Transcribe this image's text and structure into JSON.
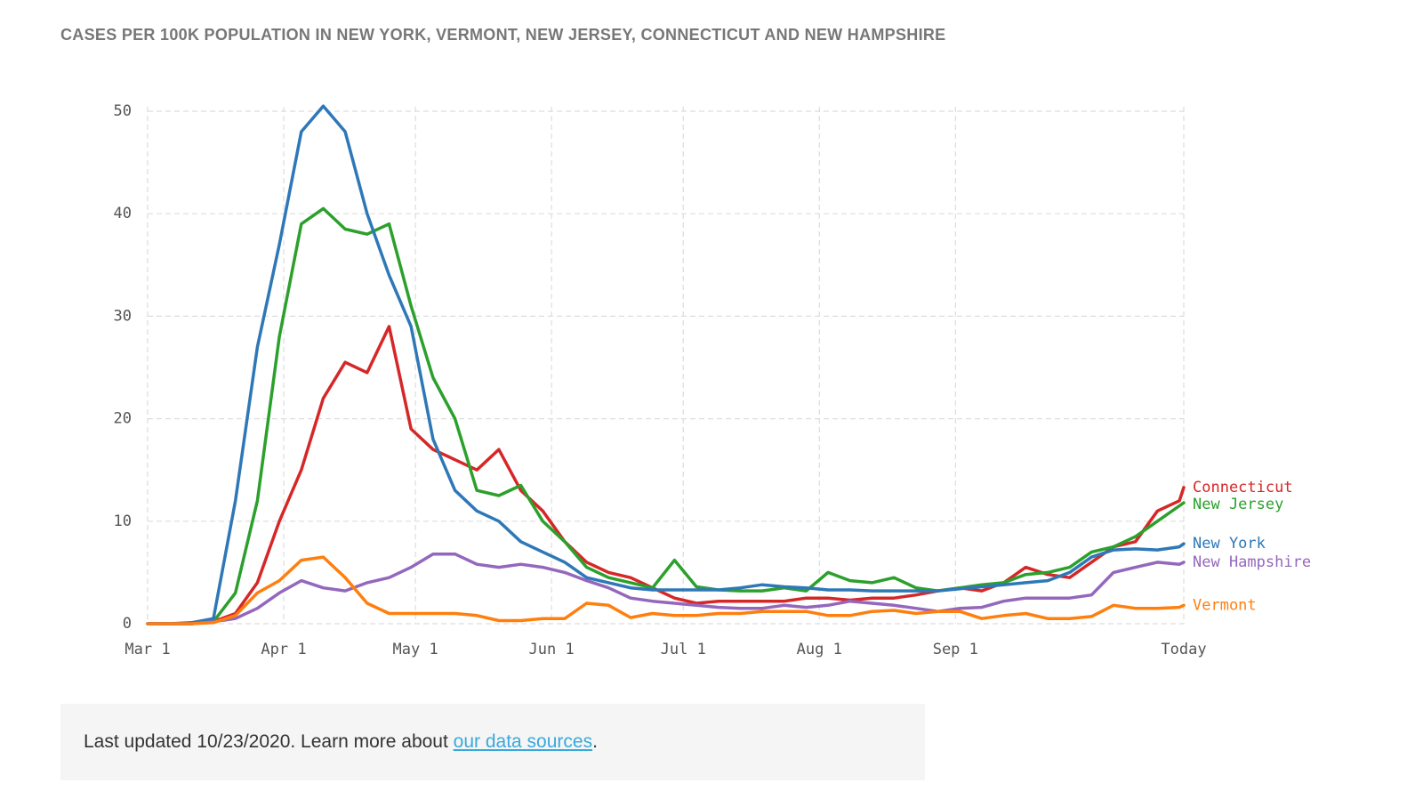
{
  "chart_data": {
    "type": "line",
    "title": "CASES PER 100K POPULATION IN NEW YORK, VERMONT, NEW JERSEY, CONNECTICUT AND NEW HAMPSHIRE",
    "x": [
      "Mar 1",
      "Mar 6",
      "Mar 11",
      "Mar 16",
      "Mar 21",
      "Mar 26",
      "Mar 31",
      "Apr 5",
      "Apr 10",
      "Apr 15",
      "Apr 20",
      "Apr 25",
      "Apr 30",
      "May 5",
      "May 10",
      "May 15",
      "May 20",
      "May 25",
      "May 30",
      "Jun 4",
      "Jun 9",
      "Jun 14",
      "Jun 19",
      "Jun 24",
      "Jun 29",
      "Jul 4",
      "Jul 9",
      "Jul 14",
      "Jul 19",
      "Jul 24",
      "Jul 29",
      "Aug 3",
      "Aug 8",
      "Aug 13",
      "Aug 18",
      "Aug 23",
      "Aug 28",
      "Sep 2",
      "Sep 7",
      "Sep 12",
      "Sep 17",
      "Sep 22",
      "Sep 27",
      "Oct 2",
      "Oct 7",
      "Oct 12",
      "Oct 17",
      "Oct 22",
      "Oct 23"
    ],
    "series": [
      {
        "name": "Connecticut",
        "color": "#d62728",
        "values": [
          0,
          0,
          0,
          0.2,
          1,
          4,
          10,
          15,
          22,
          25.5,
          24.5,
          29,
          19,
          17,
          16,
          15,
          17,
          13,
          11,
          8,
          6,
          5,
          4.5,
          3.5,
          2.5,
          2,
          2.2,
          2.2,
          2.2,
          2.2,
          2.5,
          2.5,
          2.3,
          2.5,
          2.5,
          2.8,
          3.2,
          3.5,
          3.2,
          4,
          5.5,
          4.8,
          4.5,
          6,
          7.5,
          8,
          11,
          12,
          13.3
        ]
      },
      {
        "name": "New Jersey",
        "color": "#2ca02c",
        "values": [
          0,
          0,
          0,
          0.2,
          3,
          12,
          28,
          39,
          40.5,
          38.5,
          38,
          39,
          31,
          24,
          20,
          13,
          12.5,
          13.5,
          10,
          8,
          5.5,
          4.5,
          4,
          3.5,
          6.2,
          3.6,
          3.3,
          3.2,
          3.2,
          3.5,
          3.2,
          5,
          4.2,
          4,
          4.5,
          3.5,
          3.2,
          3.5,
          3.8,
          4,
          4.8,
          5,
          5.5,
          7,
          7.5,
          8.5,
          10,
          11.5,
          11.8
        ]
      },
      {
        "name": "New York",
        "color": "#2e78b7",
        "values": [
          0,
          0,
          0.1,
          0.5,
          12,
          27,
          37,
          48,
          50.5,
          48,
          40,
          34,
          29,
          18,
          13,
          11,
          10,
          8,
          7,
          6,
          4.5,
          4,
          3.5,
          3.3,
          3.3,
          3.3,
          3.3,
          3.5,
          3.8,
          3.6,
          3.5,
          3.3,
          3.3,
          3.2,
          3.2,
          3.2,
          3.2,
          3.4,
          3.6,
          3.8,
          4,
          4.2,
          5,
          6.5,
          7.2,
          7.3,
          7.2,
          7.5,
          7.8
        ]
      },
      {
        "name": "New Hampshire",
        "color": "#9467bd",
        "values": [
          0,
          0,
          0,
          0.2,
          0.5,
          1.5,
          3,
          4.2,
          3.5,
          3.2,
          4,
          4.5,
          5.5,
          6.8,
          6.8,
          5.8,
          5.5,
          5.8,
          5.5,
          5,
          4.2,
          3.5,
          2.5,
          2.2,
          2,
          1.8,
          1.6,
          1.5,
          1.5,
          1.8,
          1.6,
          1.8,
          2.2,
          2,
          1.8,
          1.5,
          1.2,
          1.5,
          1.6,
          2.2,
          2.5,
          2.5,
          2.5,
          2.8,
          5,
          5.5,
          6,
          5.8,
          6
        ]
      },
      {
        "name": "Vermont",
        "color": "#ff7f0e",
        "values": [
          0,
          0,
          0,
          0.1,
          0.8,
          3,
          4.2,
          6.2,
          6.5,
          4.5,
          2,
          1,
          1,
          1,
          1,
          0.8,
          0.3,
          0.3,
          0.5,
          0.5,
          2,
          1.8,
          0.6,
          1,
          0.8,
          0.8,
          1,
          1,
          1.2,
          1.2,
          1.2,
          0.8,
          0.8,
          1.2,
          1.3,
          1,
          1.2,
          1.2,
          0.5,
          0.8,
          1,
          0.5,
          0.5,
          0.7,
          1.8,
          1.5,
          1.5,
          1.6,
          1.8
        ]
      }
    ],
    "xlim": [
      "Mar 1",
      "Oct 23"
    ],
    "xticks": [
      "Mar 1",
      "Apr 1",
      "May 1",
      "Jun 1",
      "Jul 1",
      "Aug 1",
      "Sep 1",
      {
        "value": "Oct 23",
        "label": "Today"
      }
    ],
    "ylim": [
      0,
      50
    ],
    "yticks": [
      0,
      10,
      20,
      30,
      40,
      50
    ],
    "grid": true
  },
  "footnote": {
    "text": "Last updated 10/23/2020. Learn more about ",
    "link": "our data sources",
    "end": "."
  }
}
